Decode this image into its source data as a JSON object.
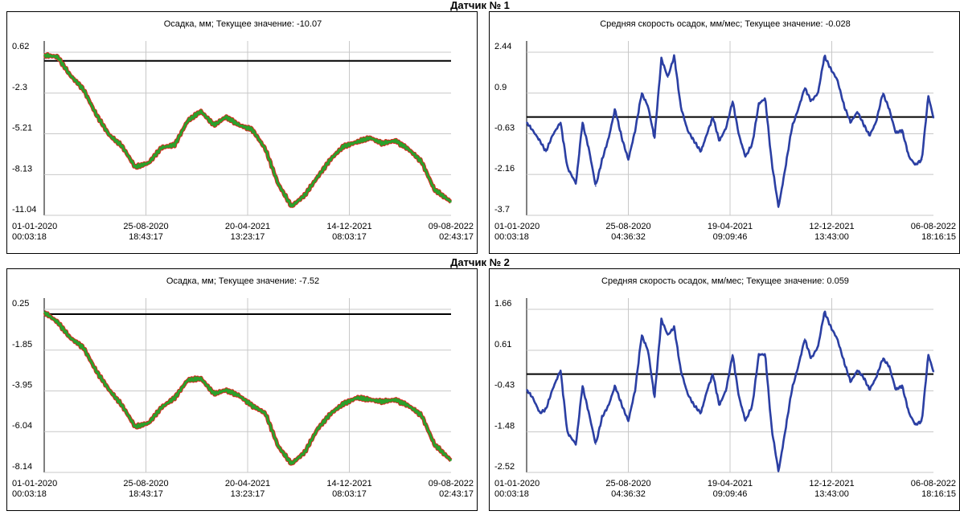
{
  "sensors": [
    {
      "title": "Датчик № 1",
      "charts": [
        {
          "type": "line",
          "title": "Осадка, мм; Текущее значение: -10.07",
          "y_ticks": [
            "0.62",
            "-2.3",
            "-5.21",
            "-8.13",
            "-11.04"
          ],
          "y_tick_values": [
            0.62,
            -2.3,
            -5.21,
            -8.13,
            -11.04
          ],
          "ylim": [
            -11.04,
            0.62
          ],
          "x_ticks": [
            [
              "01-01-2020",
              "00:03:18"
            ],
            [
              "25-08-2020",
              "18:43:17"
            ],
            [
              "20-04-2021",
              "13:23:17"
            ],
            [
              "14-12-2021",
              "08:03:17"
            ],
            [
              "09-08-2022",
              "02:43:17"
            ]
          ],
          "x_dates": [
            "2020-01-01",
            "2022-08-09"
          ],
          "reference_line": 0.0,
          "grid": true,
          "line_color": "#2ca02c",
          "marker_color": "#e0201c",
          "series": [
            {
              "x": [
                "2020-01-01",
                "2020-02-01",
                "2020-03-01",
                "2020-04-01",
                "2020-05-01",
                "2020-06-01",
                "2020-07-01",
                "2020-08-01",
                "2020-09-01",
                "2020-10-01",
                "2020-11-01",
                "2020-12-01",
                "2021-01-01",
                "2021-02-01",
                "2021-03-01",
                "2021-04-01",
                "2021-05-01",
                "2021-06-01",
                "2021-07-01",
                "2021-08-01",
                "2021-09-01",
                "2021-10-01",
                "2021-11-01",
                "2021-12-01",
                "2022-01-01",
                "2022-02-01",
                "2022-03-01",
                "2022-04-01",
                "2022-05-01",
                "2022-06-01",
                "2022-07-01",
                "2022-08-09"
              ],
              "y": [
                0.4,
                0.3,
                -1.0,
                -2.0,
                -3.8,
                -5.3,
                -6.1,
                -7.6,
                -7.3,
                -6.2,
                -6.0,
                -4.3,
                -3.6,
                -4.6,
                -4.0,
                -4.6,
                -4.9,
                -6.3,
                -8.8,
                -10.4,
                -9.6,
                -8.3,
                -7.0,
                -6.1,
                -5.8,
                -5.5,
                -5.9,
                -5.7,
                -6.3,
                -7.2,
                -9.2,
                -10.07
              ]
            }
          ]
        },
        {
          "type": "line",
          "title": "Средняя скорость осадок, мм/мес; Текущее значение: -0.028",
          "y_ticks": [
            "2.44",
            "0.9",
            "-0.63",
            "-2.16",
            "-3.7"
          ],
          "y_tick_values": [
            2.44,
            0.9,
            -0.63,
            -2.16,
            -3.7
          ],
          "ylim": [
            -3.7,
            2.44
          ],
          "x_ticks": [
            [
              "01-01-2020",
              "00:03:18"
            ],
            [
              "25-08-2020",
              "04:36:32"
            ],
            [
              "19-04-2021",
              "09:09:46"
            ],
            [
              "12-12-2021",
              "13:43:00"
            ],
            [
              "06-08-2022",
              "18:16:15"
            ]
          ],
          "x_dates": [
            "2020-01-01",
            "2022-08-06"
          ],
          "reference_line": 0.0,
          "grid": true,
          "line_color": "#2b3fa3",
          "series": [
            {
              "x": [
                "2020-01-01",
                "2020-01-15",
                "2020-02-01",
                "2020-02-15",
                "2020-03-01",
                "2020-03-20",
                "2020-04-05",
                "2020-04-25",
                "2020-05-10",
                "2020-05-25",
                "2020-06-10",
                "2020-06-25",
                "2020-07-10",
                "2020-07-25",
                "2020-08-10",
                "2020-08-25",
                "2020-09-10",
                "2020-09-25",
                "2020-10-10",
                "2020-10-25",
                "2020-11-10",
                "2020-11-25",
                "2020-12-10",
                "2020-12-25",
                "2021-01-10",
                "2021-01-25",
                "2021-02-10",
                "2021-02-25",
                "2021-03-10",
                "2021-03-25",
                "2021-04-10",
                "2021-04-25",
                "2021-05-10",
                "2021-05-25",
                "2021-06-10",
                "2021-06-25",
                "2021-07-10",
                "2021-07-25",
                "2021-08-10",
                "2021-08-25",
                "2021-09-10",
                "2021-09-25",
                "2021-10-10",
                "2021-10-25",
                "2021-11-10",
                "2021-11-25",
                "2021-12-10",
                "2021-12-25",
                "2022-01-10",
                "2022-01-25",
                "2022-02-10",
                "2022-02-25",
                "2022-03-10",
                "2022-03-25",
                "2022-04-10",
                "2022-04-25",
                "2022-05-10",
                "2022-05-25",
                "2022-06-10",
                "2022-06-25",
                "2022-07-10",
                "2022-07-25",
                "2022-08-06"
              ],
              "y": [
                -0.2,
                -0.5,
                -0.9,
                -1.3,
                -0.7,
                -0.2,
                -1.9,
                -2.5,
                -0.2,
                -1.2,
                -2.6,
                -1.6,
                -0.8,
                0.3,
                -0.8,
                -1.6,
                -0.5,
                0.9,
                0.4,
                -0.8,
                2.2,
                1.5,
                2.3,
                0.4,
                -0.5,
                -0.9,
                -1.3,
                -0.6,
                0.0,
                -0.9,
                -0.4,
                0.6,
                -0.7,
                -1.5,
                -1.0,
                0.5,
                0.7,
                -1.7,
                -3.4,
                -2.0,
                -0.4,
                0.3,
                1.1,
                0.6,
                0.9,
                2.3,
                1.8,
                1.4,
                0.4,
                -0.2,
                0.2,
                -0.3,
                -0.7,
                -0.2,
                0.9,
                0.3,
                -0.6,
                -0.5,
                -1.5,
                -1.8,
                -1.6,
                0.8,
                -0.03
              ]
            }
          ]
        }
      ]
    },
    {
      "title": "Датчик № 2",
      "charts": [
        {
          "type": "line",
          "title": "Осадка, мм; Текущее значение: -7.52",
          "y_ticks": [
            "0.25",
            "-1.85",
            "-3.95",
            "-6.04",
            "-8.14"
          ],
          "y_tick_values": [
            0.25,
            -1.85,
            -3.95,
            -6.04,
            -8.14
          ],
          "ylim": [
            -8.14,
            0.25
          ],
          "x_ticks": [
            [
              "01-01-2020",
              "00:03:18"
            ],
            [
              "25-08-2020",
              "18:43:17"
            ],
            [
              "20-04-2021",
              "13:23:17"
            ],
            [
              "14-12-2021",
              "08:03:17"
            ],
            [
              "09-08-2022",
              "02:43:17"
            ]
          ],
          "x_dates": [
            "2020-01-01",
            "2022-08-09"
          ],
          "reference_line": 0.0,
          "grid": true,
          "line_color": "#2ca02c",
          "marker_color": "#e0201c",
          "series": [
            {
              "x": [
                "2020-01-01",
                "2020-02-01",
                "2020-03-01",
                "2020-04-01",
                "2020-05-01",
                "2020-06-01",
                "2020-07-01",
                "2020-08-01",
                "2020-09-01",
                "2020-10-01",
                "2020-11-01",
                "2020-12-01",
                "2021-01-01",
                "2021-02-01",
                "2021-03-01",
                "2021-04-01",
                "2021-05-01",
                "2021-06-01",
                "2021-07-01",
                "2021-08-01",
                "2021-09-01",
                "2021-10-01",
                "2021-11-01",
                "2021-12-01",
                "2022-01-01",
                "2022-02-01",
                "2022-03-01",
                "2022-04-01",
                "2022-05-01",
                "2022-06-01",
                "2022-07-01",
                "2022-08-09"
              ],
              "y": [
                0.1,
                -0.4,
                -1.2,
                -1.7,
                -2.9,
                -3.9,
                -4.7,
                -5.8,
                -5.6,
                -4.8,
                -4.3,
                -3.4,
                -3.3,
                -4.1,
                -3.9,
                -4.2,
                -4.7,
                -5.1,
                -6.8,
                -7.7,
                -7.1,
                -5.9,
                -5.1,
                -4.6,
                -4.3,
                -4.4,
                -4.5,
                -4.4,
                -4.7,
                -5.2,
                -6.7,
                -7.52
              ]
            }
          ]
        },
        {
          "type": "line",
          "title": "Средняя скорость осадок, мм/мес; Текущее значение: 0.059",
          "y_ticks": [
            "1.66",
            "0.61",
            "-0.43",
            "-1.48",
            "-2.52"
          ],
          "y_tick_values": [
            1.66,
            0.61,
            -0.43,
            -1.48,
            -2.52
          ],
          "ylim": [
            -2.52,
            1.66
          ],
          "x_ticks": [
            [
              "01-01-2020",
              "00:03:18"
            ],
            [
              "25-08-2020",
              "04:36:32"
            ],
            [
              "19-04-2021",
              "09:09:46"
            ],
            [
              "12-12-2021",
              "13:43:00"
            ],
            [
              "06-08-2022",
              "18:16:15"
            ]
          ],
          "x_dates": [
            "2020-01-01",
            "2022-08-06"
          ],
          "reference_line": 0.0,
          "grid": true,
          "line_color": "#2b3fa3",
          "series": [
            {
              "x": [
                "2020-01-01",
                "2020-01-15",
                "2020-02-01",
                "2020-02-15",
                "2020-03-01",
                "2020-03-20",
                "2020-04-05",
                "2020-04-25",
                "2020-05-10",
                "2020-05-25",
                "2020-06-10",
                "2020-06-25",
                "2020-07-10",
                "2020-07-25",
                "2020-08-10",
                "2020-08-25",
                "2020-09-10",
                "2020-09-25",
                "2020-10-10",
                "2020-10-25",
                "2020-11-10",
                "2020-11-25",
                "2020-12-10",
                "2020-12-25",
                "2021-01-10",
                "2021-01-25",
                "2021-02-10",
                "2021-02-25",
                "2021-03-10",
                "2021-03-25",
                "2021-04-10",
                "2021-04-25",
                "2021-05-10",
                "2021-05-25",
                "2021-06-10",
                "2021-06-25",
                "2021-07-10",
                "2021-07-25",
                "2021-08-10",
                "2021-08-25",
                "2021-09-10",
                "2021-09-25",
                "2021-10-10",
                "2021-10-25",
                "2021-11-10",
                "2021-11-25",
                "2021-12-10",
                "2021-12-25",
                "2022-01-10",
                "2022-01-25",
                "2022-02-10",
                "2022-02-25",
                "2022-03-10",
                "2022-03-25",
                "2022-04-10",
                "2022-04-25",
                "2022-05-10",
                "2022-05-25",
                "2022-06-10",
                "2022-06-25",
                "2022-07-10",
                "2022-07-25",
                "2022-08-06"
              ],
              "y": [
                -0.4,
                -0.6,
                -1.0,
                -0.9,
                -0.4,
                0.1,
                -1.5,
                -1.8,
                -0.3,
                -1.0,
                -1.8,
                -1.1,
                -0.8,
                -0.3,
                -0.8,
                -1.2,
                -0.4,
                1.0,
                0.6,
                -0.6,
                1.4,
                1.0,
                1.2,
                0.1,
                -0.5,
                -0.8,
                -1.0,
                -0.4,
                0.0,
                -0.8,
                -0.4,
                0.5,
                -0.6,
                -1.2,
                -0.8,
                0.5,
                0.5,
                -1.4,
                -2.5,
                -1.5,
                -0.4,
                0.2,
                0.9,
                0.4,
                0.7,
                1.6,
                1.2,
                0.9,
                0.3,
                -0.2,
                0.1,
                -0.1,
                -0.4,
                -0.1,
                0.4,
                0.2,
                -0.4,
                -0.3,
                -1.0,
                -1.3,
                -1.2,
                0.5,
                0.06
              ]
            }
          ]
        }
      ]
    }
  ]
}
